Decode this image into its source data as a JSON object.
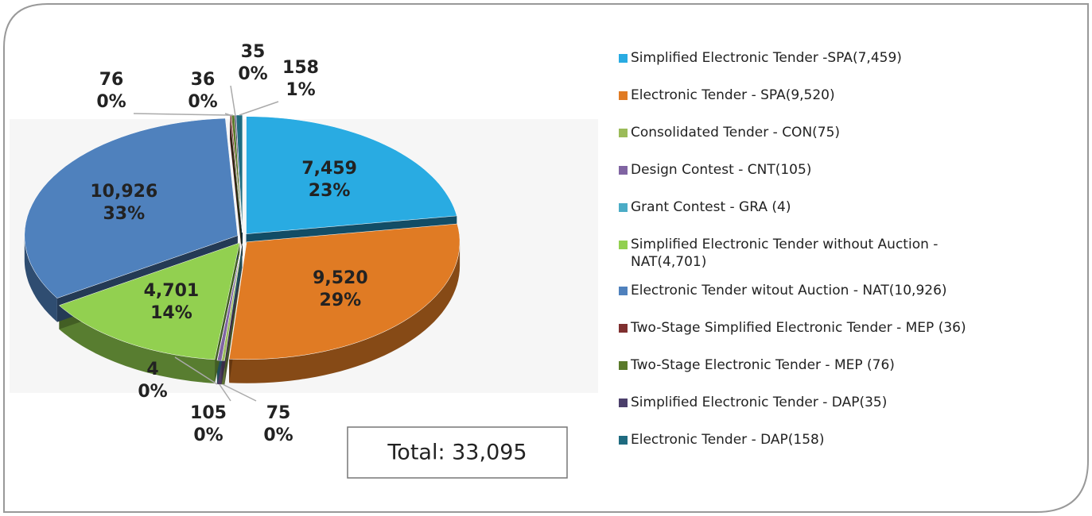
{
  "chart_data": {
    "type": "pie3d",
    "categories": [
      "Simplified Electronic Tender -SPA(7,459)",
      "Electronic Tender - SPA(9,520)",
      "Consolidated Tender - CON(75)",
      "Design Contest - CNT(105)",
      "Grant Contest - GRA (4)",
      "Simplified Electronic Tender without Auction - NAT(4,701)",
      "Electronic Tender witout Auction - NAT(10,926)",
      "Two-Stage Simplified Electronic Tender - MEP (36)",
      "Two-Stage  Electronic Tender - MEP (76)",
      "Simplified Electronic Tender - DAP(35)",
      "Electronic Tender - DAP(158)"
    ],
    "values": [
      7459,
      9520,
      75,
      105,
      4,
      4701,
      10926,
      36,
      76,
      35,
      158
    ],
    "value_labels": [
      "7,459",
      "9,520",
      "75",
      "105",
      "4",
      "4,701",
      "10,926",
      "36",
      "76",
      "35",
      "158"
    ],
    "percents": [
      23,
      29,
      0,
      0,
      0,
      14,
      33,
      0,
      0,
      0,
      1
    ],
    "percent_labels": [
      "23%",
      "29%",
      "0%",
      "0%",
      "0%",
      "14%",
      "33%",
      "0%",
      "0%",
      "0%",
      "1%"
    ],
    "colors": [
      "#29abe2",
      "#e07b24",
      "#9bbb59",
      "#8064a2",
      "#4bacc6",
      "#92d050",
      "#4f81bd",
      "#7f2f2f",
      "#5a7a2a",
      "#4b3f6b",
      "#1f6b80"
    ],
    "total_label": "Total: 33,095"
  }
}
